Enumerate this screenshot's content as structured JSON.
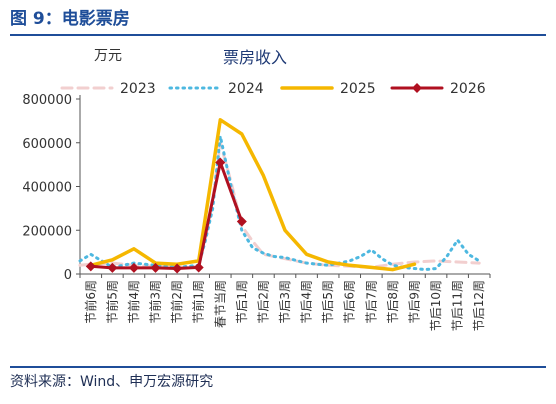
{
  "figure_title": "图 9：电影票房",
  "source": "资料来源：Wind、申万宏源研究",
  "chart_data": {
    "type": "line",
    "title": "票房收入",
    "ylabel": "万元",
    "xlabel": "",
    "ylim": [
      0,
      800000
    ],
    "yticks": [
      0,
      200000,
      400000,
      600000,
      800000
    ],
    "ytick_labels": [
      "0",
      "200000",
      "400000",
      "600000",
      "800000"
    ],
    "grid": false,
    "legend": "top",
    "categories": [
      "节前6周",
      "节前5周",
      "节前4周",
      "节前3周",
      "节前2周",
      "节前1周",
      "春节当周",
      "节后1周",
      "节后2周",
      "节后3周",
      "节后4周",
      "节后5周",
      "节后6周",
      "节后7周",
      "节后8周",
      "节后9周",
      "节后10周",
      "节后11周",
      "节后12周"
    ],
    "series": [
      {
        "name": "2023",
        "color": "#f2cfcf",
        "dash": "dash",
        "width": 3,
        "x": [
          -6.5,
          -6,
          -5,
          -4,
          -3,
          -2,
          -1,
          -0.6,
          -0.3,
          0,
          0.5,
          1,
          1.5,
          2,
          3,
          4,
          5,
          6,
          7,
          8,
          9,
          10,
          11,
          12
        ],
        "values": [
          40000,
          45000,
          50000,
          40000,
          35000,
          30000,
          35000,
          200000,
          380000,
          600000,
          420000,
          220000,
          150000,
          90000,
          70000,
          50000,
          40000,
          35000,
          30000,
          45000,
          55000,
          60000,
          55000,
          50000
        ],
        "marker": false
      },
      {
        "name": "2024",
        "color": "#4db8e0",
        "dash": "dot",
        "width": 3,
        "x": [
          -6.5,
          -6,
          -5,
          -4,
          -3,
          -2,
          -1,
          -0.7,
          -0.35,
          0,
          0.5,
          1,
          1.5,
          2,
          2.5,
          3,
          4,
          5,
          6,
          6.5,
          7,
          7.5,
          8,
          8.5,
          9,
          9.5,
          10,
          10.5,
          11,
          11.5,
          12
        ],
        "values": [
          60000,
          90000,
          30000,
          50000,
          40000,
          30000,
          40000,
          150000,
          300000,
          630000,
          400000,
          200000,
          120000,
          95000,
          80000,
          75000,
          50000,
          40000,
          60000,
          80000,
          110000,
          70000,
          40000,
          30000,
          25000,
          20000,
          25000,
          80000,
          155000,
          90000,
          60000
        ],
        "marker": false
      },
      {
        "name": "2025",
        "color": "#f5b700",
        "dash": "solid",
        "width": 3.5,
        "x": [
          -6,
          -5,
          -4,
          -3,
          -2,
          -1,
          0,
          1,
          2,
          3,
          4,
          5,
          6,
          7,
          8,
          9
        ],
        "values": [
          40000,
          65000,
          115000,
          50000,
          45000,
          60000,
          705000,
          640000,
          450000,
          200000,
          90000,
          55000,
          40000,
          30000,
          20000,
          45000
        ],
        "marker": false
      },
      {
        "name": "2026",
        "color": "#b01020",
        "dash": "solid",
        "width": 3,
        "x": [
          -6,
          -5,
          -4,
          -3,
          -2,
          -1,
          0,
          1
        ],
        "values": [
          35000,
          28000,
          28000,
          28000,
          25000,
          30000,
          510000,
          240000
        ],
        "marker": true
      }
    ]
  }
}
